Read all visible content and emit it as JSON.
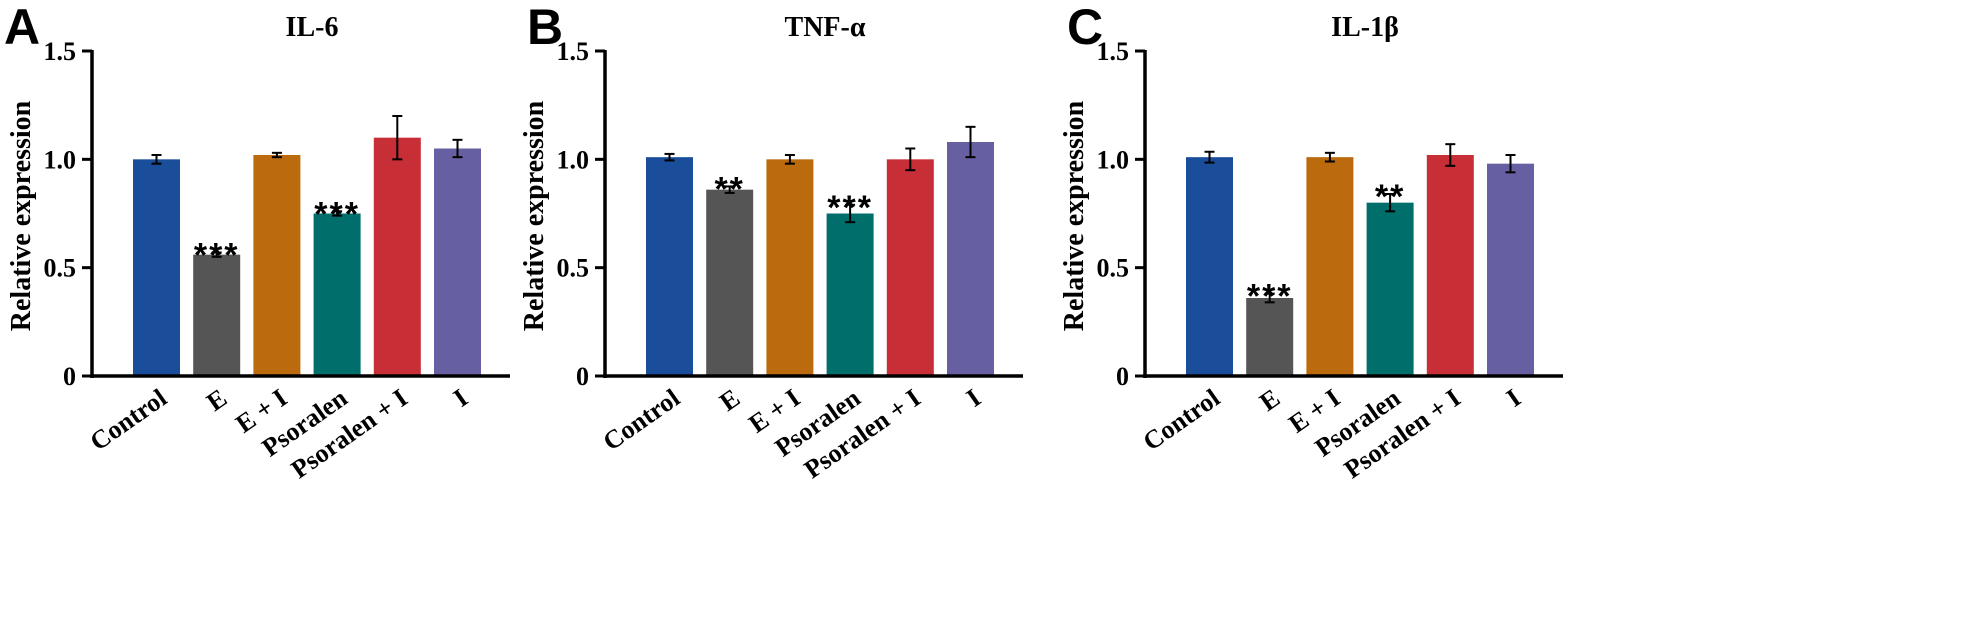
{
  "chart_data": [
    {
      "type": "bar",
      "panel": "A",
      "title": "IL-6",
      "ylabel": "Relative expression",
      "ylim": [
        0,
        1.5
      ],
      "yticks": [
        "0",
        "0.5",
        "1.0",
        "1.5"
      ],
      "categories": [
        "Control",
        "E",
        "E + I",
        "Psoralen",
        "Psoralen + I",
        "I"
      ],
      "values": [
        1.0,
        0.56,
        1.02,
        0.75,
        1.1,
        1.05
      ],
      "errors": [
        0.02,
        0.01,
        0.01,
        0.01,
        0.1,
        0.04
      ],
      "significance": [
        "",
        "***",
        "",
        "***",
        "",
        ""
      ],
      "colors": [
        "#1a4e9a",
        "#555555",
        "#bb6a0d",
        "#006e6a",
        "#c72e35",
        "#6660a3"
      ]
    },
    {
      "type": "bar",
      "panel": "B",
      "title": "TNF-α",
      "ylabel": "Relative expression",
      "ylim": [
        0,
        1.5
      ],
      "yticks": [
        "0",
        "0.5",
        "1.0",
        "1.5"
      ],
      "categories": [
        "Control",
        "E",
        "E + I",
        "Psoralen",
        "Psoralen + I",
        "I"
      ],
      "values": [
        1.01,
        0.86,
        1.0,
        0.75,
        1.0,
        1.08
      ],
      "errors": [
        0.015,
        0.015,
        0.02,
        0.04,
        0.05,
        0.07
      ],
      "significance": [
        "",
        "**",
        "",
        "***",
        "",
        ""
      ],
      "colors": [
        "#1a4e9a",
        "#555555",
        "#bb6a0d",
        "#006e6a",
        "#c72e35",
        "#6660a3"
      ]
    },
    {
      "type": "bar",
      "panel": "C",
      "title": "IL-1β",
      "ylabel": "Relative expression",
      "ylim": [
        0,
        1.5
      ],
      "yticks": [
        "0",
        "0.5",
        "1.0",
        "1.5"
      ],
      "categories": [
        "Control",
        "E",
        "E + I",
        "Psoralen",
        "Psoralen + I",
        "I"
      ],
      "values": [
        1.01,
        0.36,
        1.01,
        0.8,
        1.02,
        0.98
      ],
      "errors": [
        0.025,
        0.02,
        0.02,
        0.04,
        0.05,
        0.04
      ],
      "significance": [
        "",
        "***",
        "",
        "**",
        "",
        ""
      ],
      "colors": [
        "#1a4e9a",
        "#555555",
        "#bb6a0d",
        "#006e6a",
        "#c72e35",
        "#6660a3"
      ]
    }
  ]
}
